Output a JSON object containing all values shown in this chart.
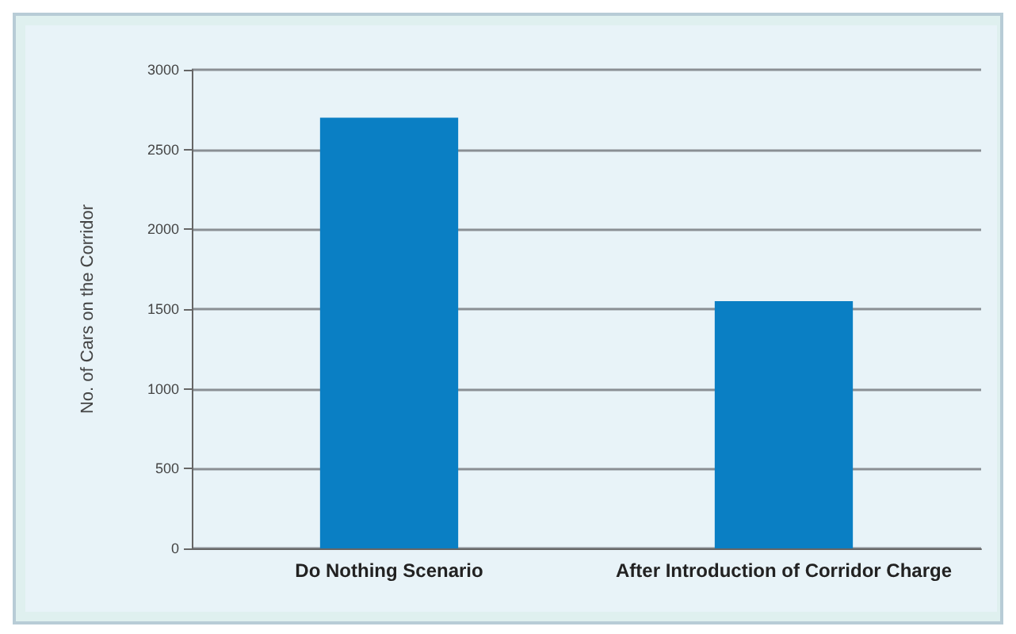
{
  "chart_data": {
    "type": "bar",
    "ylabel": "No. of Cars on the Corridor",
    "categories": [
      "Do Nothing Scenario",
      "After Introduction of Corridor Charge"
    ],
    "values": [
      2700,
      1550
    ],
    "color": "#0a7fc4",
    "ylim": [
      0,
      3000
    ],
    "yticks": [
      0,
      500,
      1000,
      1500,
      2000,
      2500,
      3000
    ],
    "grid": "y"
  }
}
